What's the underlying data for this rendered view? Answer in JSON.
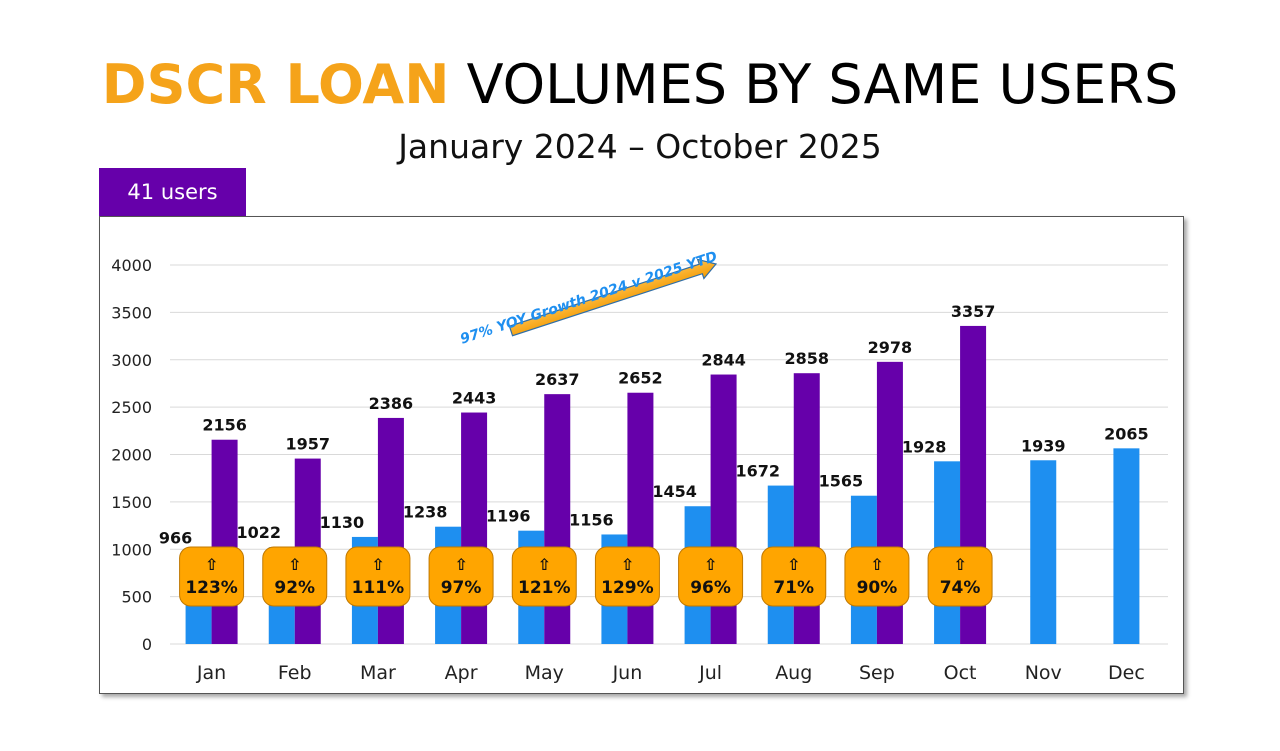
{
  "header": {
    "title_accent": "DSCR LOAN",
    "title_rest": "VOLUMES BY SAME USERS",
    "subtitle": "January 2024 – October 2025",
    "users_badge": "41 users"
  },
  "colors": {
    "accent": "#f5a31a",
    "badge": "#6600aa",
    "series_2024": "#1e8ff0",
    "series_2025": "#6600aa",
    "growth_box": "#ffa500",
    "arrow_text": "#1e8ff0"
  },
  "chart_data": {
    "type": "bar",
    "title": "",
    "xlabel": "",
    "ylabel": "",
    "ylim": [
      0,
      4000
    ],
    "y_ticks": [
      0,
      500,
      1000,
      1500,
      2000,
      2500,
      3000,
      3500,
      4000
    ],
    "grid": true,
    "categories": [
      "Jan",
      "Feb",
      "Mar",
      "Apr",
      "May",
      "Jun",
      "Jul",
      "Aug",
      "Sep",
      "Oct",
      "Nov",
      "Dec"
    ],
    "series": [
      {
        "values": [
          966,
          1022,
          1130,
          1238,
          1196,
          1156,
          1454,
          1672,
          1565,
          1928,
          1939,
          2065
        ]
      },
      {
        "values": [
          2156,
          1957,
          2386,
          2443,
          2637,
          2652,
          2844,
          2858,
          2978,
          3357,
          null,
          null
        ]
      }
    ],
    "growth_symbol": "⇧",
    "growth_labels": [
      "123%",
      "92%",
      "111%",
      "97%",
      "121%",
      "129%",
      "96%",
      "71%",
      "90%",
      "74%"
    ],
    "annotation": "97% YOY Growth 2024 v 2025 YTD"
  }
}
